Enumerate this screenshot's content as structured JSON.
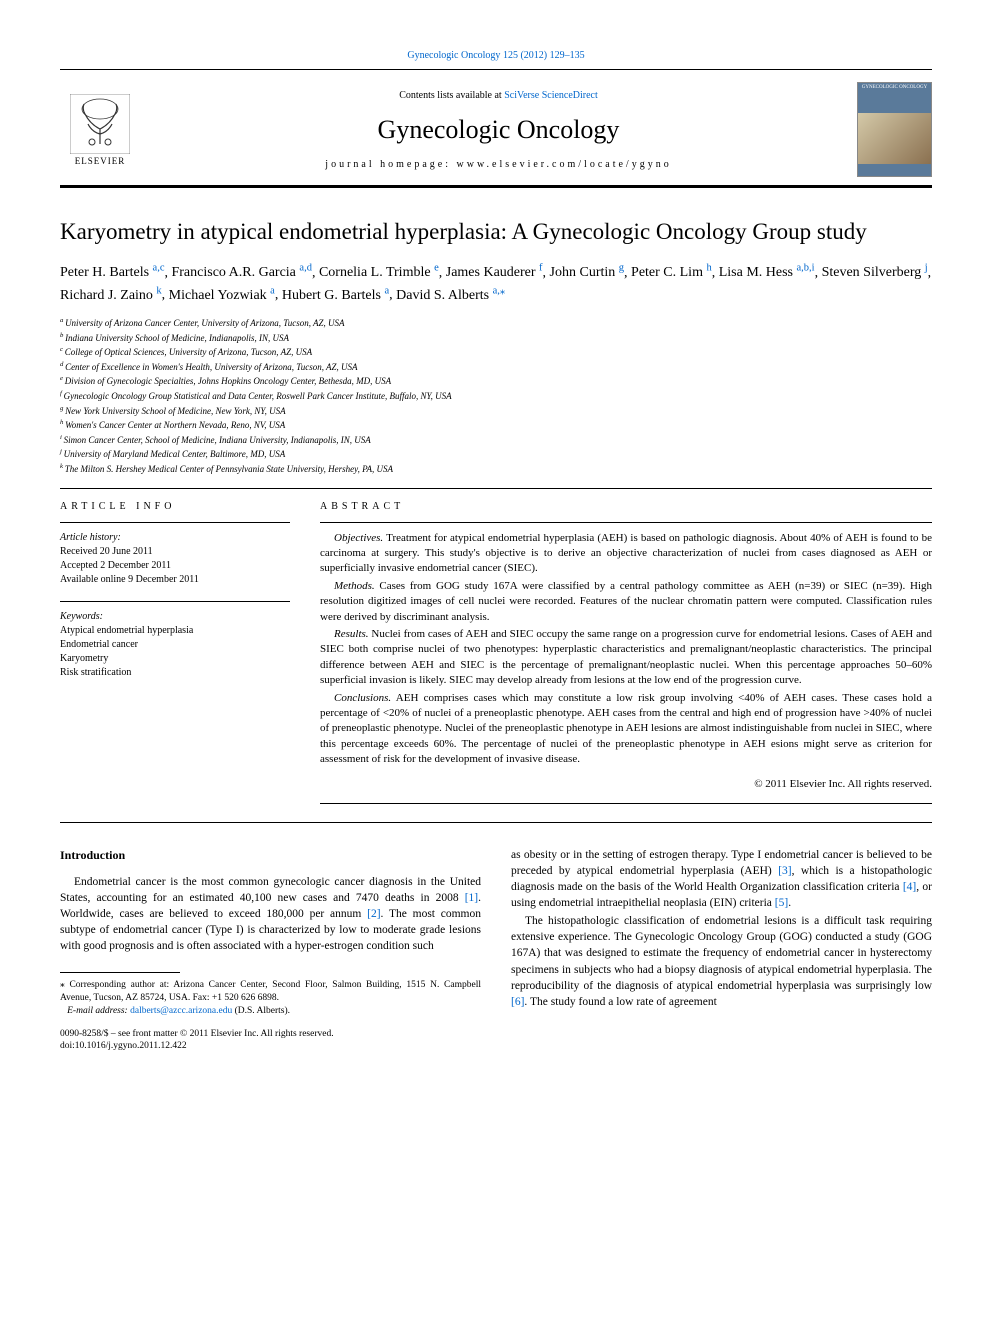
{
  "topLink": {
    "journal": "Gynecologic Oncology",
    "cite": "125 (2012) 129–135"
  },
  "header": {
    "contentsPrefix": "Contents lists available at ",
    "contentsLink": "SciVerse ScienceDirect",
    "journalName": "Gynecologic Oncology",
    "homepageLabel": "journal homepage: ",
    "homepageUrl": "www.elsevier.com/locate/ygyno",
    "elsevier": "ELSEVIER",
    "coverTitle": "GYNECOLOGIC ONCOLOGY"
  },
  "title": "Karyometry in atypical endometrial hyperplasia: A Gynecologic Oncology Group study",
  "authors": [
    {
      "name": "Peter H. Bartels",
      "sup": "a,c"
    },
    {
      "name": "Francisco A.R. Garcia",
      "sup": "a,d"
    },
    {
      "name": "Cornelia L. Trimble",
      "sup": "e"
    },
    {
      "name": "James Kauderer",
      "sup": "f"
    },
    {
      "name": "John Curtin",
      "sup": "g"
    },
    {
      "name": "Peter C. Lim",
      "sup": "h"
    },
    {
      "name": "Lisa M. Hess",
      "sup": "a,b,i"
    },
    {
      "name": "Steven Silverberg",
      "sup": "j"
    },
    {
      "name": "Richard J. Zaino",
      "sup": "k"
    },
    {
      "name": "Michael Yozwiak",
      "sup": "a"
    },
    {
      "name": "Hubert G. Bartels",
      "sup": "a"
    },
    {
      "name": "David S. Alberts",
      "sup": "a,",
      "star": true
    }
  ],
  "affiliations": [
    {
      "key": "a",
      "text": "University of Arizona Cancer Center, University of Arizona, Tucson, AZ, USA"
    },
    {
      "key": "b",
      "text": "Indiana University School of Medicine, Indianapolis, IN, USA"
    },
    {
      "key": "c",
      "text": "College of Optical Sciences, University of Arizona, Tucson, AZ, USA"
    },
    {
      "key": "d",
      "text": "Center of Excellence in Women's Health, University of Arizona, Tucson, AZ, USA"
    },
    {
      "key": "e",
      "text": "Division of Gynecologic Specialties, Johns Hopkins Oncology Center, Bethesda, MD, USA"
    },
    {
      "key": "f",
      "text": "Gynecologic Oncology Group Statistical and Data Center, Roswell Park Cancer Institute, Buffalo, NY, USA"
    },
    {
      "key": "g",
      "text": "New York University School of Medicine, New York, NY, USA"
    },
    {
      "key": "h",
      "text": "Women's Cancer Center at Northern Nevada, Reno, NV, USA"
    },
    {
      "key": "i",
      "text": "Simon Cancer Center, School of Medicine, Indiana University, Indianapolis, IN, USA"
    },
    {
      "key": "j",
      "text": "University of Maryland Medical Center, Baltimore, MD, USA"
    },
    {
      "key": "k",
      "text": "The Milton S. Hershey Medical Center of Pennsylvania State University, Hershey, PA, USA"
    }
  ],
  "articleInfo": {
    "heading": "ARTICLE INFO",
    "histLabel": "Article history:",
    "received": "Received 20 June 2011",
    "accepted": "Accepted 2 December 2011",
    "online": "Available online 9 December 2011",
    "kwLabel": "Keywords:",
    "keywords": [
      "Atypical endometrial hyperplasia",
      "Endometrial cancer",
      "Karyometry",
      "Risk stratification"
    ]
  },
  "abstract": {
    "heading": "ABSTRACT",
    "objectivesLabel": "Objectives.",
    "objectives": "Treatment for atypical endometrial hyperplasia (AEH) is based on pathologic diagnosis. About 40% of AEH is found to be carcinoma at surgery. This study's objective is to derive an objective characterization of nuclei from cases diagnosed as AEH or superficially invasive endometrial cancer (SIEC).",
    "methodsLabel": "Methods.",
    "methods": "Cases from GOG study 167A were classified by a central pathology committee as AEH (n=39) or SIEC (n=39). High resolution digitized images of cell nuclei were recorded. Features of the nuclear chromatin pattern were computed. Classification rules were derived by discriminant analysis.",
    "resultsLabel": "Results.",
    "results": "Nuclei from cases of AEH and SIEC occupy the same range on a progression curve for endometrial lesions. Cases of AEH and SIEC both comprise nuclei of two phenotypes: hyperplastic characteristics and premalignant/neoplastic characteristics. The principal difference between AEH and SIEC is the percentage of premalignant/neoplastic nuclei. When this percentage approaches 50–60% superficial invasion is likely. SIEC may develop already from lesions at the low end of the progression curve.",
    "conclusionsLabel": "Conclusions.",
    "conclusions": "AEH comprises cases which may constitute a low risk group involving <40% of AEH cases. These cases hold a percentage of <20% of nuclei of a preneoplastic phenotype. AEH cases from the central and high end of progression have >40% of nuclei of preneoplastic phenotype. Nuclei of the preneoplastic phenotype in AEH lesions are almost indistinguishable from nuclei in SIEC, where this percentage exceeds 60%. The percentage of nuclei of the preneoplastic phenotype in AEH esions might serve as criterion for assessment of risk for the development of invasive disease.",
    "copyright": "© 2011 Elsevier Inc. All rights reserved."
  },
  "intro": {
    "heading": "Introduction",
    "p1a": "Endometrial cancer is the most common gynecologic cancer diagnosis in the United States, accounting for an estimated 40,100 new cases and 7470 deaths in 2008 ",
    "ref1": "[1]",
    "p1b": ". Worldwide, cases are believed to exceed 180,000 per annum ",
    "ref2": "[2]",
    "p1c": ". The most common subtype of endometrial cancer (Type I) is characterized by low to moderate grade lesions with good prognosis and is often associated with a hyper-estrogen condition such",
    "p2a": "as obesity or in the setting of estrogen therapy. Type I endometrial cancer is believed to be preceded by atypical endometrial hyperplasia (AEH) ",
    "ref3": "[3]",
    "p2b": ", which is a histopathologic diagnosis made on the basis of the World Health Organization classification criteria ",
    "ref4": "[4]",
    "p2c": ", or using endometrial intraepithelial neoplasia (EIN) criteria ",
    "ref5": "[5]",
    "p2d": ".",
    "p3a": "The histopathologic classification of endometrial lesions is a difficult task requiring extensive experience. The Gynecologic Oncology Group (GOG) conducted a study (GOG 167A) that was designed to estimate the frequency of endometrial cancer in hysterectomy specimens in subjects who had a biopsy diagnosis of atypical endometrial hyperplasia. The reproducibility of the diagnosis of atypical endometrial hyperplasia was surprisingly low ",
    "ref6": "[6]",
    "p3b": ". The study found a low rate of agreement"
  },
  "footnotes": {
    "corrStar": "⁎",
    "corr": "Corresponding author at: Arizona Cancer Center, Second Floor, Salmon Building, 1515 N. Campbell Avenue, Tucson, AZ 85724, USA. Fax: +1 520 626 6898.",
    "emailLabel": "E-mail address:",
    "email": "dalberts@azcc.arizona.edu",
    "emailSuffix": "(D.S. Alberts).",
    "issn": "0090-8258/$ – see front matter © 2011 Elsevier Inc. All rights reserved.",
    "doi": "doi:10.1016/j.ygyno.2011.12.422"
  },
  "colors": {
    "link": "#0066cc",
    "text": "#000000",
    "coverBlue": "#5a7a9a"
  }
}
